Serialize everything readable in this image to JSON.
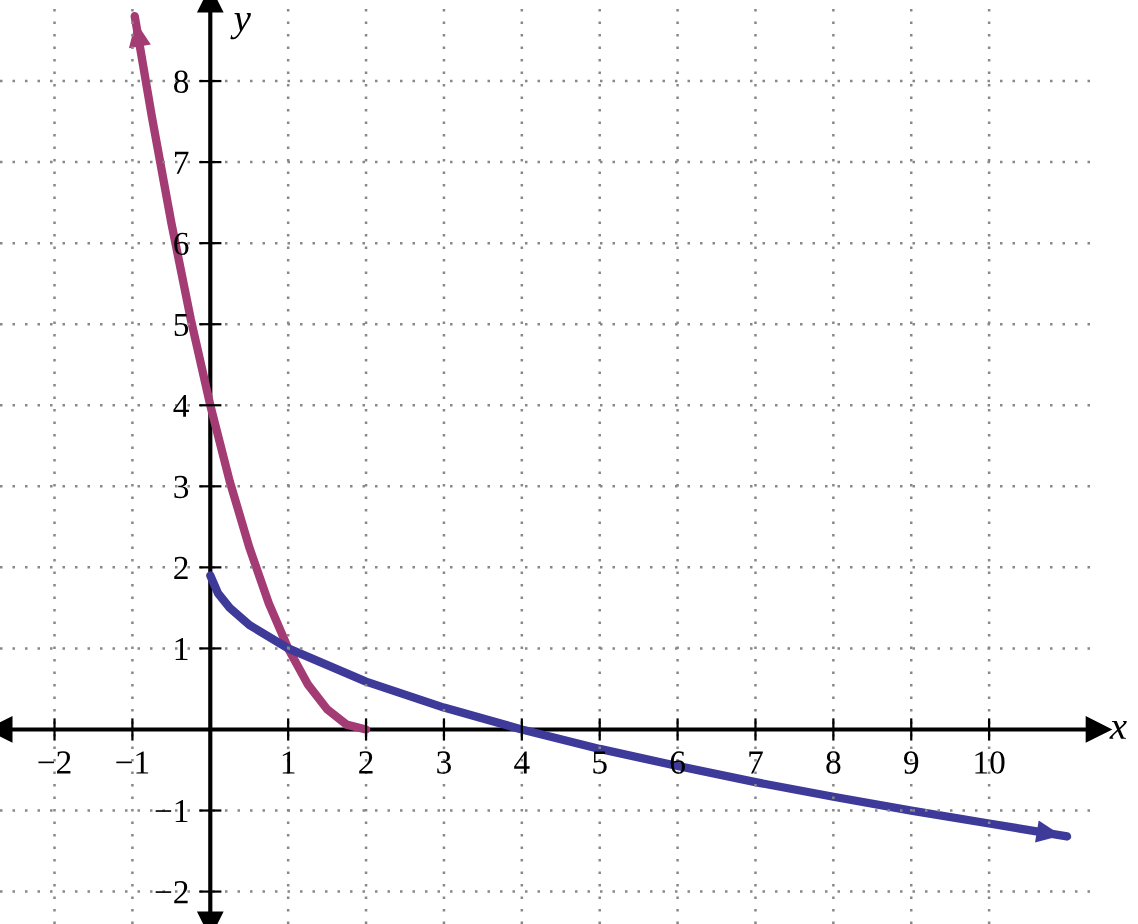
{
  "chart_data": {
    "type": "line",
    "xlabel": "x",
    "ylabel": "y",
    "xlim": [
      -2.7,
      11.4
    ],
    "ylim": [
      -2.4,
      9.0
    ],
    "xticks": [
      {
        "value": -2,
        "label": "−2"
      },
      {
        "value": -1,
        "label": "−1"
      },
      1,
      2,
      3,
      4,
      5,
      6,
      7,
      8,
      9,
      10
    ],
    "yticks": [
      {
        "value": -2,
        "label": "−2"
      },
      {
        "value": -1,
        "label": "−1"
      },
      1,
      2,
      3,
      4,
      5,
      6,
      7,
      8
    ],
    "grid": true,
    "marker": "none",
    "line_style": "solid",
    "series": [
      {
        "color": "#a33b74",
        "x": [
          2,
          1.75,
          1.5,
          1.25,
          1,
          0.75,
          0.5,
          0.25,
          0,
          -0.25,
          -0.5,
          -0.75,
          -0.97
        ],
        "values": [
          0,
          0.06,
          0.25,
          0.56,
          1,
          1.56,
          2.25,
          3.06,
          4,
          5.06,
          6.25,
          7.56,
          8.8
        ]
      },
      {
        "color": "#3d3a9a",
        "x": [
          0,
          0.1,
          0.25,
          0.5,
          1,
          2,
          3,
          4,
          5,
          6,
          7,
          8,
          9,
          10,
          11
        ],
        "values": [
          1.9,
          1.68,
          1.5,
          1.29,
          1,
          0.59,
          0.27,
          0,
          -0.24,
          -0.45,
          -0.65,
          -0.83,
          -1,
          -1.16,
          -1.32
        ]
      }
    ]
  }
}
